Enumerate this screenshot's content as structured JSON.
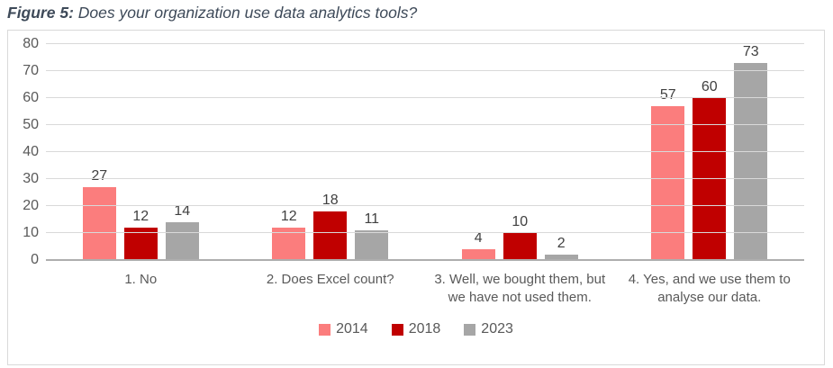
{
  "title": {
    "prefix": "Figure 5:",
    "rest": " Does your organization use data analytics tools?"
  },
  "chart_data": {
    "type": "bar",
    "title": "Figure 5: Does your organization use data analytics tools?",
    "categories": [
      "1. No",
      "2. Does Excel count?",
      "3. Well, we bought them, but we have not used them.",
      "4. Yes, and we use them to analyse our data."
    ],
    "series": [
      {
        "name": "2014",
        "color": "#fb7d7d",
        "values": [
          27,
          12,
          4,
          57
        ]
      },
      {
        "name": "2018",
        "color": "#c00000",
        "values": [
          12,
          18,
          10,
          60
        ]
      },
      {
        "name": "2023",
        "color": "#a6a6a6",
        "values": [
          14,
          11,
          2,
          73
        ]
      }
    ],
    "xlabel": "",
    "ylabel": "",
    "ylim": [
      0,
      80
    ],
    "ytick_step": 10,
    "grid": true,
    "legend_position": "bottom"
  },
  "colors": {
    "title_text": "#3e4a59",
    "axis_text": "#595959",
    "value_label_text": "#404040",
    "gridline": "#d9d9d9",
    "axis_line": "#aeaeae",
    "frame_border": "#d9d9d9"
  }
}
